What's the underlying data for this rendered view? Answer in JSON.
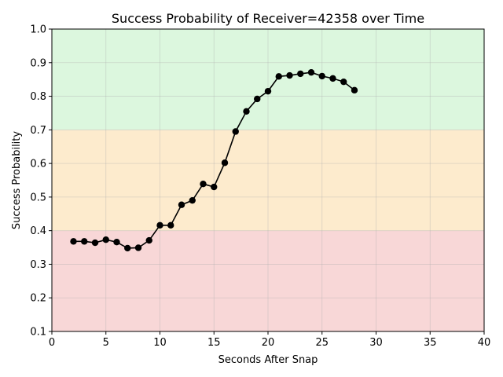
{
  "chart_data": {
    "type": "line",
    "title": "Success Probability of Receiver=42358 over Time",
    "xlabel": "Seconds After Snap",
    "ylabel": "Success Probability",
    "xlim": [
      0,
      40
    ],
    "ylim": [
      0.1,
      1.0
    ],
    "xticks": [
      0,
      5,
      10,
      15,
      20,
      25,
      30,
      35,
      40
    ],
    "yticks": [
      0.1,
      0.2,
      0.3,
      0.4,
      0.5,
      0.6,
      0.7,
      0.8,
      0.9,
      1.0
    ],
    "xtick_labels": [
      "0",
      "5",
      "10",
      "15",
      "20",
      "25",
      "30",
      "35",
      "40"
    ],
    "ytick_labels": [
      "0.1",
      "0.2",
      "0.3",
      "0.4",
      "0.5",
      "0.6",
      "0.7",
      "0.8",
      "0.9",
      "1.0"
    ],
    "grid": true,
    "bands": [
      {
        "from": 0.1,
        "to": 0.4,
        "color": "#f8d7d7"
      },
      {
        "from": 0.4,
        "to": 0.7,
        "color": "#fdebcd"
      },
      {
        "from": 0.7,
        "to": 1.0,
        "color": "#dcf7de"
      }
    ],
    "series": [
      {
        "color": "#000000",
        "marker": "circle",
        "x": [
          2,
          3,
          4,
          5,
          6,
          7,
          8,
          9,
          10,
          11,
          12,
          13,
          14,
          15,
          16,
          17,
          18,
          19,
          20,
          21,
          22,
          23,
          24,
          25,
          26,
          27,
          28
        ],
        "y": [
          0.368,
          0.368,
          0.364,
          0.373,
          0.366,
          0.348,
          0.349,
          0.371,
          0.416,
          0.416,
          0.477,
          0.49,
          0.539,
          0.53,
          0.602,
          0.695,
          0.755,
          0.792,
          0.815,
          0.859,
          0.862,
          0.867,
          0.871,
          0.86,
          0.853,
          0.843,
          0.818
        ]
      }
    ]
  }
}
